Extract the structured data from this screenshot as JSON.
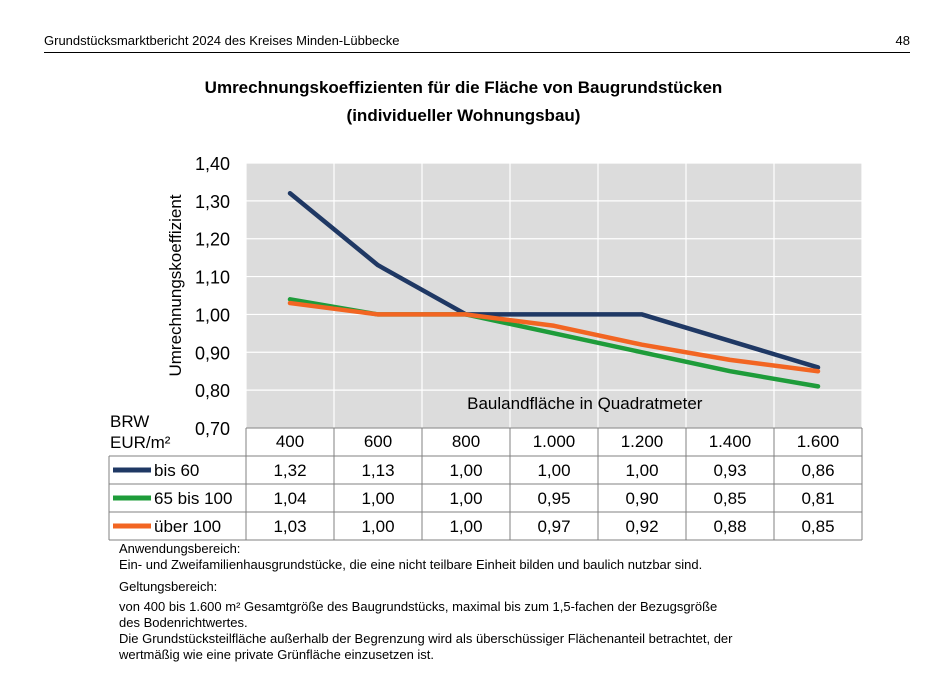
{
  "header": {
    "left": "Grundstücksmarktbericht 2024 des Kreises Minden-Lübbecke",
    "page_number": "48"
  },
  "title_line1": "Umrechnungskoeffizienten für die Fläche von Baugrundstücken",
  "title_line2": "(individueller Wohnungsbau)",
  "chart_data": {
    "type": "line",
    "ylabel": "Umrechnungskoeffizient",
    "xlabel": "Baulandfläche in Quadratmeter",
    "table_header": [
      "BRW",
      "EUR/m²"
    ],
    "categories": [
      "400",
      "600",
      "800",
      "1.000",
      "1.200",
      "1.400",
      "1.600"
    ],
    "x": [
      400,
      600,
      800,
      1000,
      1200,
      1400,
      1600
    ],
    "ylim": [
      0.7,
      1.4
    ],
    "yticks": [
      "0,70",
      "0,80",
      "0,90",
      "1,00",
      "1,10",
      "1,20",
      "1,30",
      "1,40"
    ],
    "grid": true,
    "series": [
      {
        "name": "bis 60",
        "color": "#1f3864",
        "values": [
          1.32,
          1.13,
          1.0,
          1.0,
          1.0,
          0.93,
          0.86
        ],
        "labels": [
          "1,32",
          "1,13",
          "1,00",
          "1,00",
          "1,00",
          "0,93",
          "0,86"
        ]
      },
      {
        "name": "65 bis 100",
        "color": "#1e9c3a",
        "values": [
          1.04,
          1.0,
          1.0,
          0.95,
          0.9,
          0.85,
          0.81
        ],
        "labels": [
          "1,04",
          "1,00",
          "1,00",
          "0,95",
          "0,90",
          "0,85",
          "0,81"
        ]
      },
      {
        "name": "über 100",
        "color": "#f26522",
        "values": [
          1.03,
          1.0,
          1.0,
          0.97,
          0.92,
          0.88,
          0.85
        ],
        "labels": [
          "1,03",
          "1,00",
          "1,00",
          "0,97",
          "0,92",
          "0,88",
          "0,85"
        ]
      }
    ]
  },
  "notes": {
    "anwendung_label": "Anwendungsbereich:",
    "anwendung_text": "Ein- und Zweifamilienhausgrundstücke, die eine nicht teilbare Einheit bilden und baulich nutzbar sind.",
    "geltung_label": "Geltungsbereich:",
    "geltung_text_1a": "von 400 bis 1.600 m² Gesamtgröße des Baugrundstücks, maximal bis zum 1,5-fachen der Bezugsgröße",
    "geltung_text_1b": "des Bodenrichtwertes.",
    "geltung_text_2a": "Die Grundstücksteilfläche außerhalb der Begrenzung wird als überschüssiger Flächenanteil betrachtet, der",
    "geltung_text_2b": "wertmäßig wie eine private Grünfläche einzusetzen ist."
  }
}
